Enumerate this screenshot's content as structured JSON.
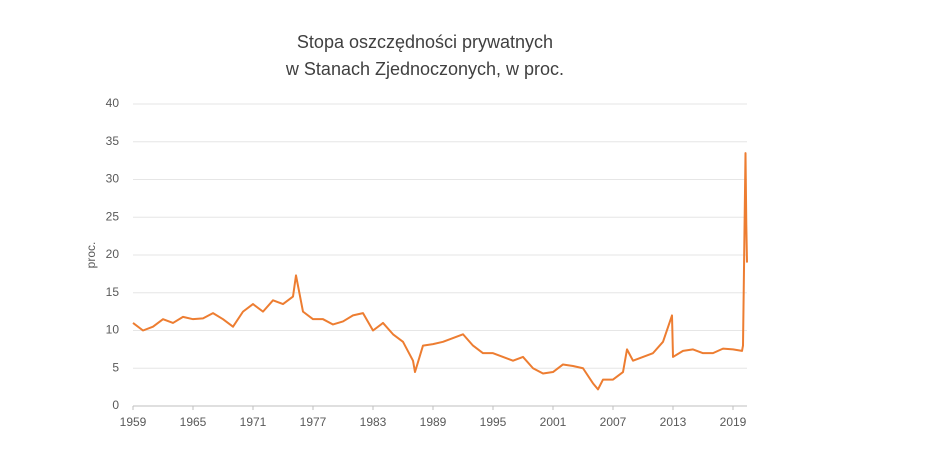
{
  "chart_data": {
    "type": "line",
    "title": [
      "Stopa oszczędności  prywatnych",
      "w Stanach Zjednoczonych,  w proc."
    ],
    "y_label": "proc.",
    "x": [
      1959,
      1960,
      1961,
      1962,
      1963,
      1964,
      1965,
      1966,
      1967,
      1968,
      1969,
      1970,
      1971,
      1972,
      1973,
      1974,
      1975,
      1975.3,
      1976,
      1977,
      1978,
      1979,
      1980,
      1981,
      1982,
      1983,
      1984,
      1985,
      1986,
      1987,
      1987.2,
      1988,
      1989,
      1990,
      1991,
      1992,
      1993,
      1994,
      1995,
      1996,
      1997,
      1998,
      1999,
      2000,
      2001,
      2002,
      2003,
      2004,
      2005,
      2005.5,
      2006,
      2007,
      2008,
      2008.4,
      2009,
      2010,
      2011,
      2012,
      2012.9,
      2013,
      2014,
      2015,
      2016,
      2017,
      2018,
      2019,
      2019.9,
      2020,
      2020.25,
      2020.33,
      2020.4
    ],
    "series": [
      {
        "name": "proc.",
        "color": "#ed7d31",
        "values": [
          11,
          10,
          10.5,
          11.5,
          11,
          11.8,
          11.5,
          11.6,
          12.3,
          11.5,
          10.5,
          12.5,
          13.5,
          12.5,
          14,
          13.5,
          14.5,
          17.3,
          12.5,
          11.5,
          11.5,
          10.8,
          11.2,
          12,
          12.3,
          10,
          11,
          9.5,
          8.5,
          6,
          4.5,
          8,
          8.2,
          8.5,
          9,
          9.5,
          8,
          7,
          7,
          6.5,
          6,
          6.5,
          5,
          4.3,
          4.5,
          5.5,
          5.3,
          5,
          3,
          2.2,
          3.5,
          3.5,
          4.5,
          7.5,
          6,
          6.5,
          7,
          8.5,
          12,
          6.5,
          7.3,
          7.5,
          7,
          7,
          7.6,
          7.5,
          7.3,
          8,
          33.5,
          24,
          19
        ]
      }
    ],
    "xlim": [
      1959,
      2020.4
    ],
    "xticks": [
      1959,
      1965,
      1971,
      1977,
      1983,
      1989,
      1995,
      2001,
      2007,
      2013,
      2019
    ],
    "ylim": [
      0,
      40
    ],
    "yticks": [
      0,
      5,
      10,
      15,
      20,
      25,
      30,
      35,
      40
    ],
    "grid": true
  }
}
